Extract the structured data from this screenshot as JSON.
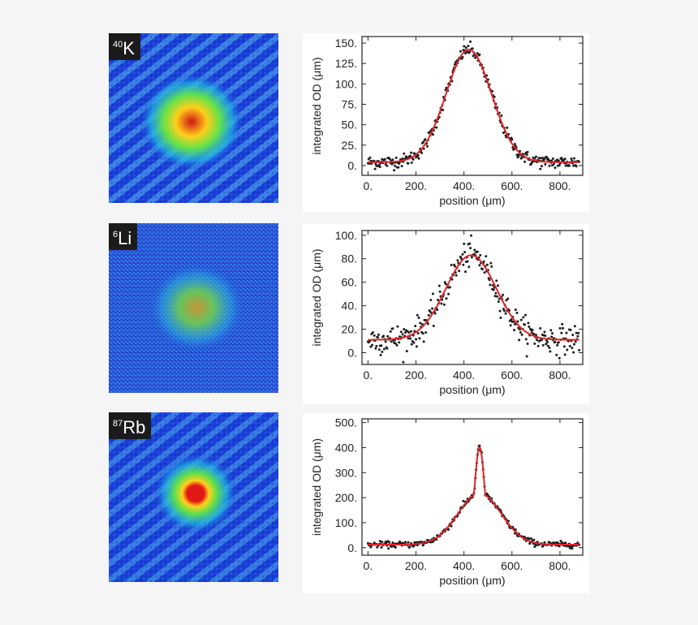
{
  "panels": [
    {
      "isotope_mass": "40",
      "element": "K"
    },
    {
      "isotope_mass": "6",
      "element": "Li"
    },
    {
      "isotope_mass": "87",
      "element": "Rb"
    }
  ],
  "colors": {
    "data_points": "#1e1e1e",
    "fit_line": "#e0262b",
    "image_background": "#1a3fd6"
  },
  "chart_data": [
    {
      "type": "scatter",
      "xlabel": "position (μm)",
      "ylabel": "integrated OD (μm)",
      "xlim": [
        -25,
        895
      ],
      "ylim": [
        -12,
        158
      ],
      "xticks": [
        0,
        200,
        400,
        600,
        800
      ],
      "xtick_labels": [
        "0.",
        "200.",
        "400.",
        "600.",
        "800."
      ],
      "yticks": [
        0,
        25,
        50,
        75,
        100,
        125,
        150
      ],
      "ytick_labels": [
        "0.",
        "25.",
        "50.",
        "75.",
        "100.",
        "125.",
        "150."
      ],
      "series": [
        {
          "role": "data",
          "style": "points",
          "model": {
            "kind": "gaussian",
            "amplitude": 138,
            "center": 420,
            "sigma": 95,
            "offset": 4,
            "noise": 4
          }
        },
        {
          "role": "fit",
          "style": "line",
          "model": {
            "kind": "gaussian",
            "amplitude": 138,
            "center": 420,
            "sigma": 95,
            "offset": 4
          }
        }
      ]
    },
    {
      "type": "scatter",
      "xlabel": "position (μm)",
      "ylabel": "integrated OD (μm)",
      "xlim": [
        -25,
        895
      ],
      "ylim": [
        -10,
        104
      ],
      "xticks": [
        0,
        200,
        400,
        600,
        800
      ],
      "xtick_labels": [
        "0.",
        "200.",
        "400.",
        "600.",
        "800."
      ],
      "yticks": [
        0,
        20,
        40,
        60,
        80,
        100
      ],
      "ytick_labels": [
        "0.",
        "20.",
        "40.",
        "60.",
        "80.",
        "100."
      ],
      "series": [
        {
          "role": "data",
          "style": "points",
          "model": {
            "kind": "gaussian",
            "amplitude": 72,
            "center": 430,
            "sigma": 105,
            "offset": 11,
            "noise": 6
          }
        },
        {
          "role": "fit",
          "style": "line",
          "model": {
            "kind": "gaussian",
            "amplitude": 72,
            "center": 430,
            "sigma": 105,
            "offset": 11
          }
        }
      ]
    },
    {
      "type": "scatter",
      "xlabel": "position (μm)",
      "ylabel": "integrated OD (μm)",
      "xlim": [
        -25,
        895
      ],
      "ylim": [
        -30,
        515
      ],
      "xticks": [
        0,
        200,
        400,
        600,
        800
      ],
      "xtick_labels": [
        "0.",
        "200.",
        "400.",
        "600.",
        "800."
      ],
      "yticks": [
        0,
        100,
        200,
        300,
        400,
        500
      ],
      "ytick_labels": [
        "0.",
        "100.",
        "200.",
        "300.",
        "400.",
        "500."
      ],
      "series": [
        {
          "role": "data",
          "style": "points",
          "model": {
            "kind": "bimodal",
            "thermal_amplitude": 205,
            "thermal_center": 465,
            "thermal_sigma": 90,
            "peak_amplitude": 185,
            "peak_center": 465,
            "peak_radius": 25,
            "offset": 12,
            "noise": 6
          }
        },
        {
          "role": "fit",
          "style": "line",
          "model": {
            "kind": "bimodal",
            "thermal_amplitude": 205,
            "thermal_center": 465,
            "thermal_sigma": 90,
            "peak_amplitude": 185,
            "peak_center": 465,
            "peak_radius": 25,
            "offset": 12
          }
        }
      ]
    }
  ]
}
